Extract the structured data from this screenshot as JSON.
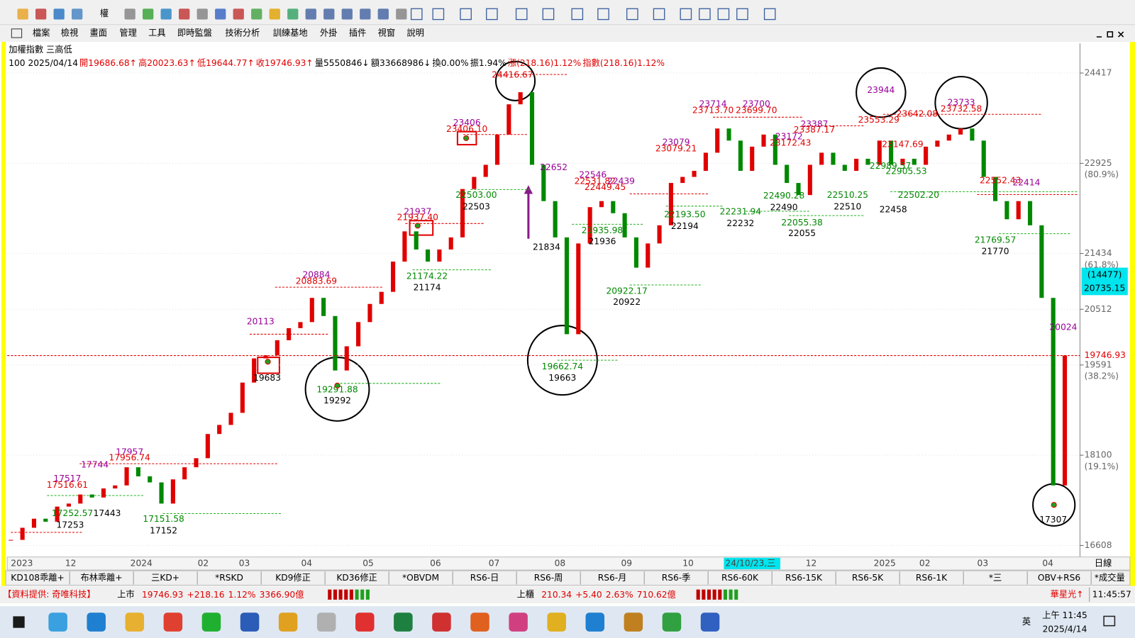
{
  "toolbar": {
    "label": "權"
  },
  "menu": [
    "檔案",
    "檢視",
    "畫面",
    "管理",
    "工具",
    "即時監盤",
    "技術分析",
    "訓練基地",
    "外掛",
    "插件",
    "視窗",
    "說明"
  ],
  "window": {
    "title": "加權指數 三高低",
    "info": [
      "100 2025/04/14",
      "開19686.68↑",
      "高20023.63↑",
      "低19644.77↑",
      "收19746.93↑",
      "量5550846↓",
      "額33668986↓",
      "換0.00%",
      "振1.94%",
      "漲(218.16)1.12%",
      "指數(218.16)1.12%"
    ]
  },
  "chart_data": {
    "type": "candlestick",
    "values": [
      16700,
      16900,
      17050,
      17000,
      17250,
      17300,
      17450,
      17400,
      17550,
      17600,
      17900,
      17750,
      17650,
      17300,
      17700,
      17900,
      18050,
      18450,
      18600,
      18800,
      19300,
      19700,
      19750,
      20000,
      20200,
      20300,
      20700,
      20400,
      19500,
      19900,
      20300,
      20600,
      20800,
      21300,
      21800,
      21500,
      21300,
      21500,
      21700,
      22500,
      22700,
      22900,
      23400,
      23900,
      24100,
      22900,
      22300,
      21700,
      20100,
      21600,
      22200,
      22300,
      22100,
      21700,
      21200,
      21600,
      21900,
      22600,
      22700,
      22800,
      23100,
      23500,
      23300,
      22800,
      23200,
      23400,
      22900,
      22600,
      22400,
      22900,
      23100,
      22900,
      22800,
      23000,
      22900,
      23300,
      22900,
      23000,
      22900,
      23200,
      23300,
      23400,
      23500,
      23300,
      22700,
      22300,
      22000,
      22300,
      21900,
      20700,
      17600,
      19746.93
    ],
    "up_color": "#e00000",
    "down_color": "#008800",
    "ylim": [
      16417,
      24883
    ],
    "yticks": [
      24417,
      22925,
      21434,
      20512,
      19591,
      18100,
      16608
    ],
    "grid": true,
    "fib_labels": [
      "(80.9%)",
      "(61.8%)",
      "(38.2%)",
      "(19.1%)"
    ],
    "x_labels": [
      "2023",
      "12",
      "2024",
      "02",
      "03",
      "04",
      "05",
      "06",
      "07",
      "08",
      "09",
      "10",
      "24/10/23,三",
      "12",
      "2025",
      "02",
      "03",
      "04"
    ],
    "period": "日線",
    "cursor": {
      "count": "(14477)",
      "price": "20735.15"
    },
    "annotations": [
      24416.67,
      23406,
      {
        "value": 23406.1,
        "label": "23406.10"
      },
      22652,
      {
        "value": 22503,
        "label": "22503.00"
      },
      22503,
      21937,
      {
        "value": 21937.4,
        "label": "21937.40"
      },
      21174.22,
      21174,
      20884,
      20883.69,
      20113,
      19683,
      19291.88,
      19292,
      17957,
      17956.74,
      17744,
      17517,
      17516.61,
      17252.57,
      17253,
      17443,
      17151.58,
      17152,
      21834,
      22546,
      22531.82,
      22439,
      22449.45,
      21935.98,
      21936,
      19662.74,
      19663,
      20922.17,
      20922,
      23079,
      23079.21,
      {
        "value": 22193.5,
        "label": "22193.50"
      },
      22194,
      23714,
      {
        "value": 23713.7,
        "label": "23713.70"
      },
      23700,
      {
        "value": 23699.7,
        "label": "23699.70"
      },
      22231.94,
      22232,
      23172,
      23172.43,
      23387,
      23387.17,
      22490.28,
      22490,
      22055.38,
      22055,
      22510.25,
      22510,
      23944,
      23553.29,
      23642.08,
      23147.69,
      22989.57,
      22905.53,
      {
        "value": 22502.2,
        "label": "22502.20"
      },
      22458,
      23733,
      23732.58,
      22552.43,
      22414,
      21769.57,
      21770,
      20024,
      17307
    ]
  },
  "tabs": [
    "KD108乖離+",
    "布林乖離+",
    "三KD+",
    "*RSKD",
    "KD9修正",
    "KD36修正",
    "*OBVDM",
    "RS6-日",
    "RS6-周",
    "RS6-月",
    "RS6-季",
    "RS6-60K",
    "RS6-15K",
    "RS6-5K",
    "RS6-1K",
    "*三",
    "OBV+RS6",
    "*成交量"
  ],
  "status": {
    "source": "【資料提供: 奇唯科技】",
    "listed": {
      "name": "上市",
      "price": 19746.93,
      "change": "+218.16",
      "pct": "1.12%",
      "amount": "3366.90億"
    },
    "otc": {
      "name": "上櫃",
      "price": 210.34,
      "change": "+5.40",
      "pct": "2.63%",
      "amount": "710.62億"
    },
    "ticker": "華星光↑",
    "time": "11:45:57"
  },
  "taskbar": {
    "ime": "英",
    "time": "上午 11:45",
    "date": "2025/4/14"
  }
}
